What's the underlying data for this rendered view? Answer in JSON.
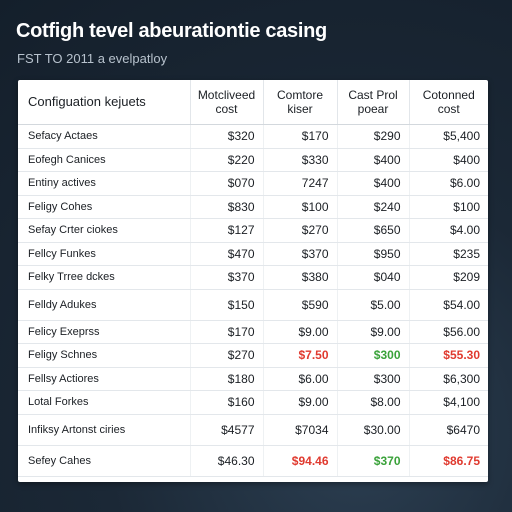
{
  "header": {
    "title": "Cotfigh tevel abeurationtie casing",
    "subtitle": "FST TO 2011 a evelpatloy"
  },
  "table": {
    "columns": [
      "Configuation kejuets",
      "Motcliveed\ncost",
      "Comtore\nkiser",
      "Cast Prol\npoear",
      "Cotonned\ncost"
    ],
    "rows": [
      {
        "name": "Sefacy Actaes",
        "values": [
          "$320",
          "$170",
          "$290",
          "$5,400"
        ],
        "colors": [
          "",
          "",
          "",
          ""
        ]
      },
      {
        "name": "Eofegh Canices",
        "values": [
          "$220",
          "$330",
          "$400",
          "$400"
        ],
        "colors": [
          "",
          "",
          "",
          ""
        ]
      },
      {
        "name": "Entiny actives",
        "values": [
          "$070",
          "7247",
          "$400",
          "$6.00"
        ],
        "colors": [
          "",
          "",
          "",
          ""
        ]
      },
      {
        "name": "Feligy Cohes",
        "values": [
          "$830",
          "$100",
          "$240",
          "$100"
        ],
        "colors": [
          "",
          "",
          "",
          ""
        ]
      },
      {
        "name": "Sefay Crter ciokes",
        "values": [
          "$127",
          "$270",
          "$650",
          "$4.00"
        ],
        "colors": [
          "",
          "",
          "",
          ""
        ]
      },
      {
        "name": "Fellcy Funkes",
        "values": [
          "$470",
          "$370",
          "$950",
          "$235"
        ],
        "colors": [
          "",
          "",
          "",
          ""
        ]
      },
      {
        "name": "Felky Trree dckes",
        "values": [
          "$370",
          "$380",
          "$040",
          "$209"
        ],
        "colors": [
          "",
          "",
          "",
          ""
        ]
      },
      {
        "name": "Felldy Adukes",
        "values": [
          "$150",
          "$590",
          "$5.00",
          "$54.00"
        ],
        "colors": [
          "",
          "",
          "",
          ""
        ]
      },
      {
        "name": "Felicy Exeprss",
        "values": [
          "$170",
          "$9.00",
          "$9.00",
          "$56.00"
        ],
        "colors": [
          "",
          "",
          "",
          ""
        ]
      },
      {
        "name": "Feligy Schnes",
        "values": [
          "$270",
          "$7.50",
          "$300",
          "$55.30"
        ],
        "colors": [
          "",
          "red",
          "green",
          "red"
        ]
      },
      {
        "name": "Fellsy Actiores",
        "values": [
          "$180",
          "$6.00",
          "$300",
          "$6,300"
        ],
        "colors": [
          "",
          "",
          "",
          ""
        ]
      },
      {
        "name": "Lotal Forkes",
        "values": [
          "$160",
          "$9.00",
          "$8.00",
          "$4,100"
        ],
        "colors": [
          "",
          "",
          "",
          ""
        ]
      },
      {
        "name": "Infiksy Artonst ciries",
        "values": [
          "$4577",
          "$7034",
          "$30.00",
          "$6470"
        ],
        "colors": [
          "",
          "",
          "",
          ""
        ]
      },
      {
        "name": "Sefey Cahes",
        "values": [
          "$46.30",
          "$94.46",
          "$370",
          "$86.75"
        ],
        "colors": [
          "",
          "red",
          "green",
          "red"
        ]
      }
    ]
  }
}
